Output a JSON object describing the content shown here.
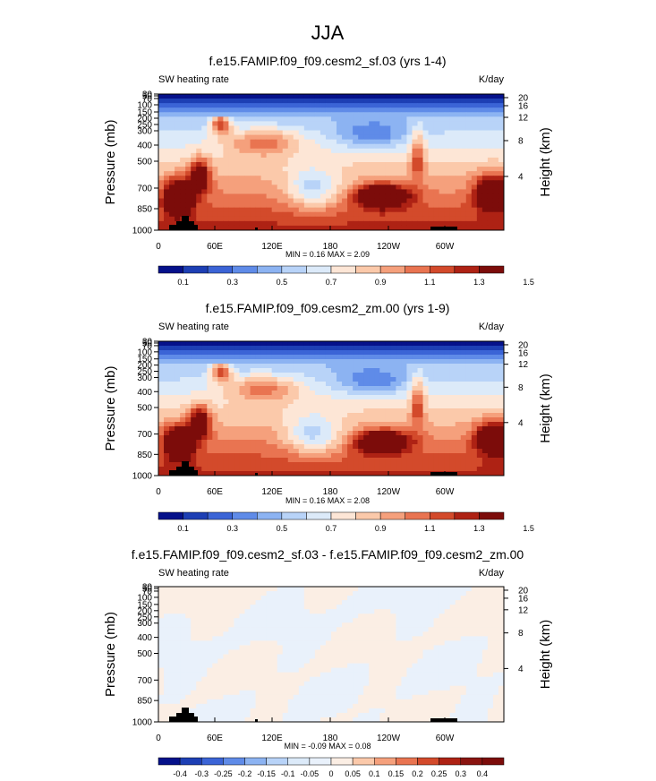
{
  "figure_title": "JJA",
  "chart_data": [
    {
      "type": "heatmap",
      "title": "f.e15.FAMIP.f09_f09.cesm2_sf.03 (yrs 1-4)",
      "left_label": "SW heating rate",
      "right_label": "K/day",
      "ylabel": "Pressure (mb)",
      "ylabel_right": "Height (km)",
      "x_ticks": [
        "0",
        "60E",
        "120E",
        "180",
        "120W",
        "60W"
      ],
      "y_ticks": [
        "30",
        "50",
        "70",
        "100",
        "150",
        "200",
        "250",
        "300",
        "400",
        "500",
        "700",
        "850",
        "1000"
      ],
      "height_ticks": [
        "20",
        "16",
        "12",
        "8",
        "4"
      ],
      "stats": "MIN =  0.16  MAX =  2.09",
      "colorbar_labels": [
        "0.1",
        "0.3",
        "0.5",
        "0.7",
        "0.9",
        "1.1",
        "1.3",
        "1.5"
      ],
      "colors": [
        "#05118a",
        "#1d3fb4",
        "#3b64d6",
        "#5f8be8",
        "#8cb3f2",
        "#b8d3f8",
        "#dceaf9",
        "#fde6d6",
        "#fbc9aa",
        "#f5a07c",
        "#e97451",
        "#d34a2b",
        "#ae2214",
        "#7c0c0a"
      ]
    },
    {
      "type": "heatmap",
      "title": "f.e15.FAMIP.f09_f09.cesm2_zm.00 (yrs 1-9)",
      "left_label": "SW heating rate",
      "right_label": "K/day",
      "ylabel": "Pressure (mb)",
      "ylabel_right": "Height (km)",
      "x_ticks": [
        "0",
        "60E",
        "120E",
        "180",
        "120W",
        "60W"
      ],
      "y_ticks": [
        "30",
        "50",
        "70",
        "100",
        "150",
        "200",
        "250",
        "300",
        "400",
        "500",
        "700",
        "850",
        "1000"
      ],
      "height_ticks": [
        "20",
        "16",
        "12",
        "8",
        "4"
      ],
      "stats": "MIN =  0.16  MAX =  2.08",
      "colorbar_labels": [
        "0.1",
        "0.3",
        "0.5",
        "0.7",
        "0.9",
        "1.1",
        "1.3",
        "1.5"
      ],
      "colors": [
        "#05118a",
        "#1d3fb4",
        "#3b64d6",
        "#5f8be8",
        "#8cb3f2",
        "#b8d3f8",
        "#dceaf9",
        "#fde6d6",
        "#fbc9aa",
        "#f5a07c",
        "#e97451",
        "#d34a2b",
        "#ae2214",
        "#7c0c0a"
      ]
    },
    {
      "type": "heatmap",
      "title": "f.e15.FAMIP.f09_f09.cesm2_sf.03 - f.e15.FAMIP.f09_f09.cesm2_zm.00",
      "left_label": "SW heating rate",
      "right_label": "K/day",
      "ylabel": "Pressure (mb)",
      "ylabel_right": "Height (km)",
      "x_ticks": [
        "0",
        "60E",
        "120E",
        "180",
        "120W",
        "60W"
      ],
      "y_ticks": [
        "30",
        "50",
        "70",
        "100",
        "150",
        "200",
        "250",
        "300",
        "400",
        "500",
        "700",
        "850",
        "1000"
      ],
      "height_ticks": [
        "20",
        "16",
        "12",
        "8",
        "4"
      ],
      "stats": "MIN = -0.09  MAX =  0.08",
      "colorbar_labels": [
        "-0.4",
        "-0.3",
        "-0.25",
        "-0.2",
        "-0.15",
        "-0.1",
        "-0.05",
        "0",
        "0.05",
        "0.1",
        "0.15",
        "0.2",
        "0.25",
        "0.3",
        "0.4"
      ],
      "colors": [
        "#05118a",
        "#1d3fb4",
        "#3b64d6",
        "#5f8be8",
        "#8cb3f2",
        "#b8d3f8",
        "#dceaf9",
        "#e9f1fb",
        "#fbeee4",
        "#fbc9aa",
        "#f5a07c",
        "#e97451",
        "#d34a2b",
        "#ae2214",
        "#8a1410",
        "#7c0c0a"
      ]
    }
  ]
}
